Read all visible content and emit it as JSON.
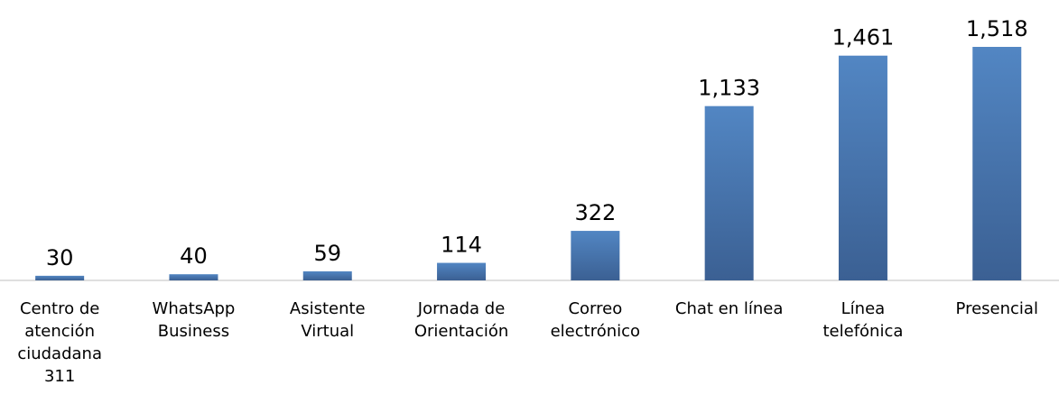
{
  "chart_data": {
    "type": "bar",
    "categories": [
      "Centro de\natención\nciudadana\n311",
      "WhatsApp\nBusiness",
      "Asistente\nVirtual",
      "Jornada de\nOrientación",
      "Correo\nelectrónico",
      "Chat en línea",
      "Línea\ntelefónica",
      "Presencial"
    ],
    "values": [
      30,
      40,
      59,
      114,
      322,
      1133,
      1461,
      1518
    ],
    "value_labels": [
      "30",
      "40",
      "59",
      "114",
      "322",
      "1,133",
      "1,461",
      "1,518"
    ],
    "color": "#4f81bd",
    "ylim": [
      0,
      1600
    ]
  }
}
